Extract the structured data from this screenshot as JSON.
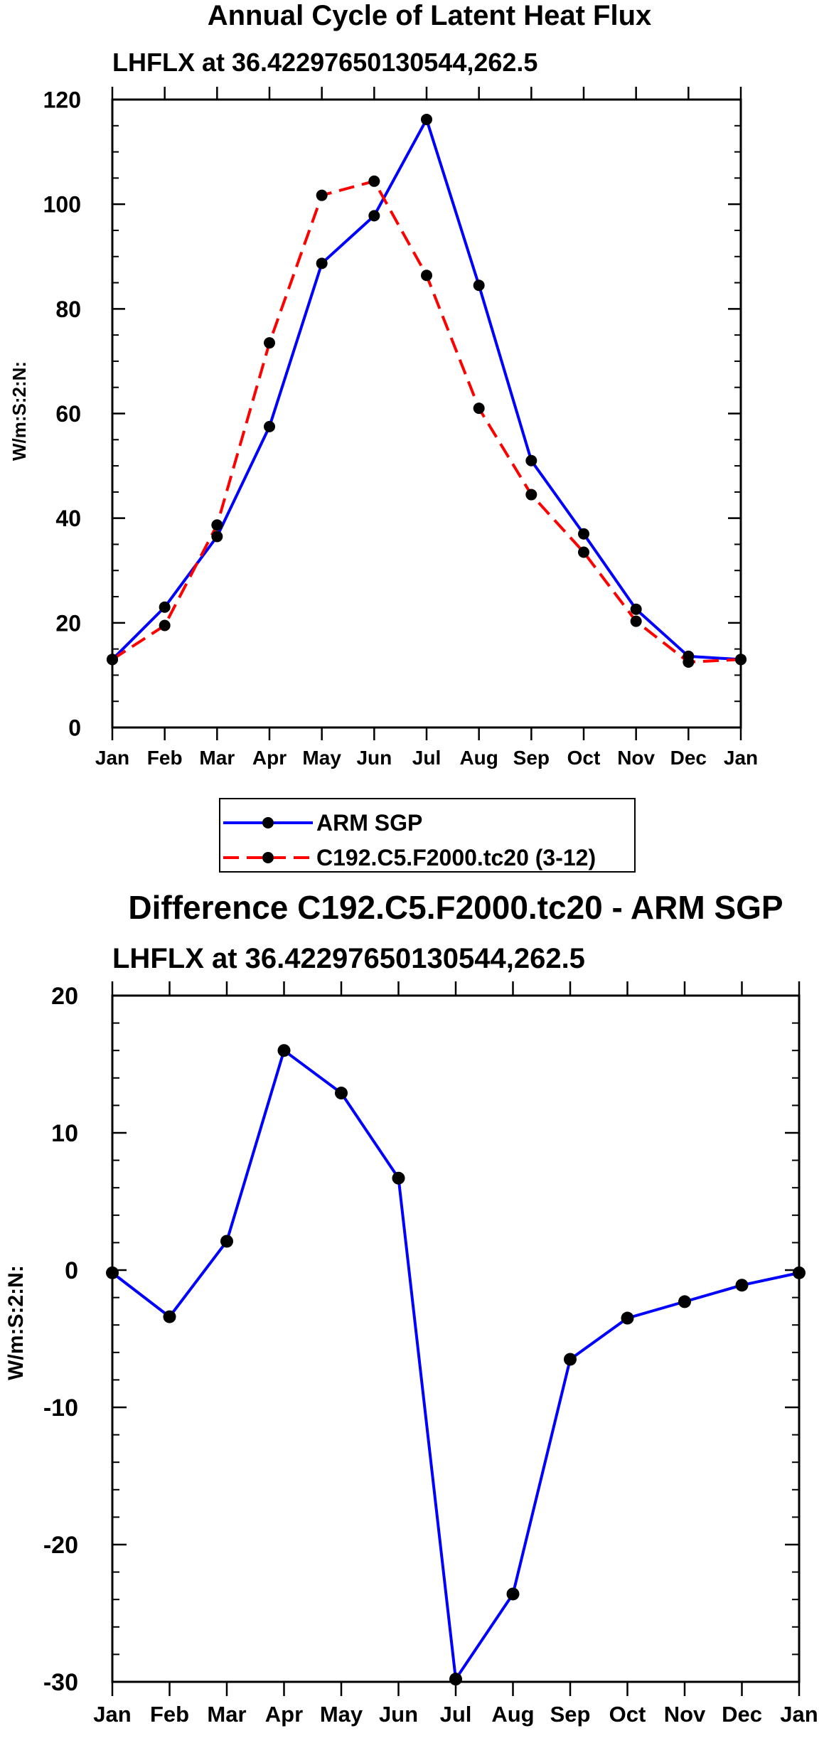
{
  "chart_data": [
    {
      "type": "line",
      "title": "Annual Cycle of Latent Heat Flux",
      "subtitle": "LHFLX at 36.42297650130544,262.5",
      "xlabel": "",
      "ylabel": "W/m:S:2:N:",
      "categories": [
        "Jan",
        "Feb",
        "Mar",
        "Apr",
        "May",
        "Jun",
        "Jul",
        "Aug",
        "Sep",
        "Oct",
        "Nov",
        "Dec",
        "Jan"
      ],
      "ylim": [
        0,
        120
      ],
      "yticks": [
        0,
        20,
        40,
        60,
        80,
        100,
        120
      ],
      "ytick_labels": [
        "0",
        "20",
        "40",
        "60",
        "80",
        "100",
        "120"
      ],
      "grid": false,
      "series": [
        {
          "name": "ARM SGP",
          "color": "#0000ff",
          "dash": "solid",
          "values": [
            13,
            23,
            36.5,
            57.5,
            88.7,
            97.8,
            116.2,
            84.5,
            51,
            37,
            22.6,
            13.6,
            13
          ]
        },
        {
          "name": "C192.C5.F2000.tc20 (3-12)",
          "color": "#ff0000",
          "dash": "dashed",
          "values": [
            13,
            19.5,
            38.7,
            73.5,
            101.7,
            104.4,
            86.4,
            61,
            44.5,
            33.5,
            20.3,
            12.5,
            13
          ]
        }
      ],
      "legend": {
        "position": "bottom-center",
        "entries": [
          "ARM SGP",
          "C192.C5.F2000.tc20 (3-12)"
        ]
      }
    },
    {
      "type": "line",
      "title": "Difference C192.C5.F2000.tc20 - ARM SGP",
      "subtitle": "LHFLX at 36.42297650130544,262.5",
      "xlabel": "",
      "ylabel": "W/m:S:2:N:",
      "categories": [
        "Jan",
        "Feb",
        "Mar",
        "Apr",
        "May",
        "Jun",
        "Jul",
        "Aug",
        "Sep",
        "Oct",
        "Nov",
        "Dec",
        "Jan"
      ],
      "ylim": [
        -30,
        20
      ],
      "yticks": [
        -30,
        -20,
        -10,
        0,
        10,
        20
      ],
      "ytick_labels": [
        "-30",
        "-20",
        "-10",
        "0",
        "10",
        "20"
      ],
      "grid": false,
      "series": [
        {
          "name": "Difference",
          "color": "#0000ff",
          "dash": "solid",
          "values": [
            -0.2,
            -3.4,
            2.1,
            16,
            12.9,
            6.7,
            -29.8,
            -23.6,
            -6.5,
            -3.5,
            -2.3,
            -1.1,
            -0.2
          ]
        }
      ]
    }
  ]
}
